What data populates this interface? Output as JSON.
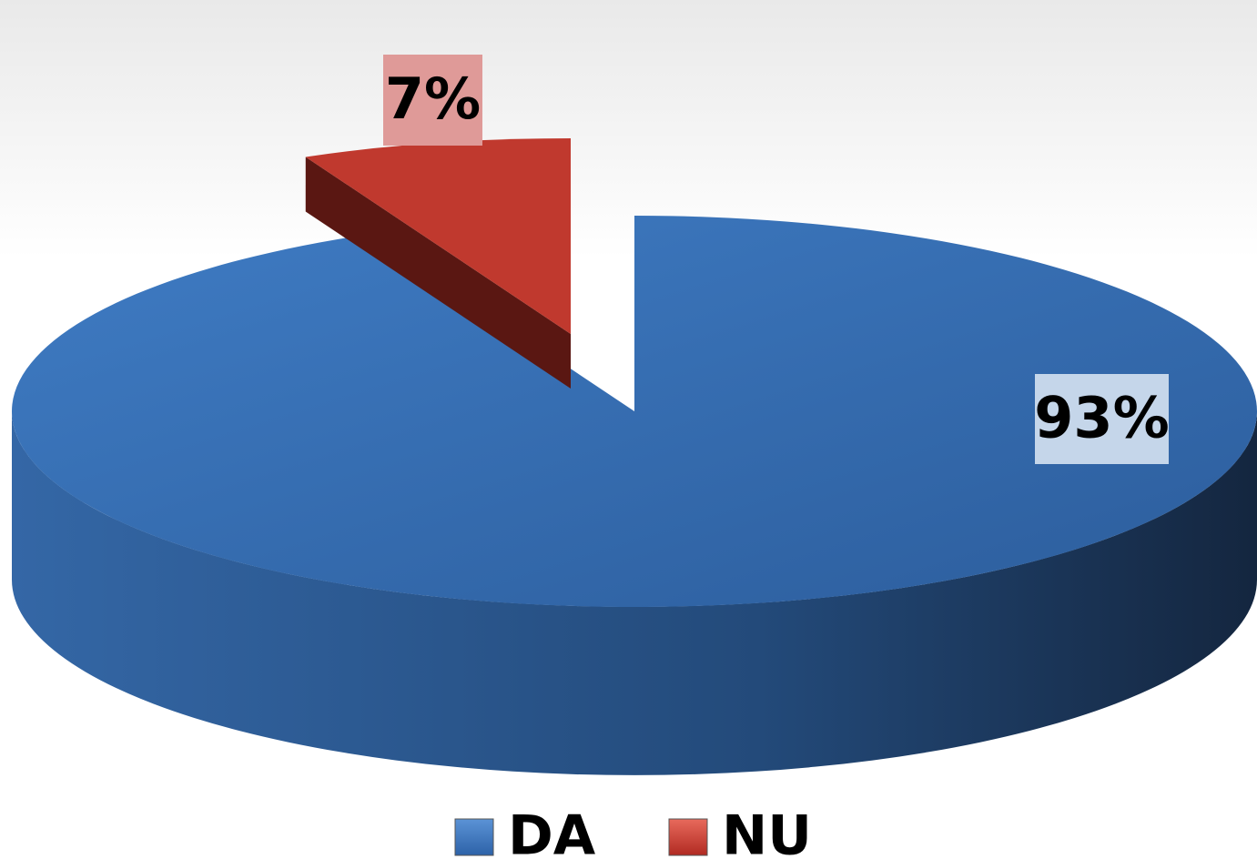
{
  "chart_data": {
    "type": "pie",
    "categories": [
      "DA",
      "NU"
    ],
    "values": [
      93,
      7
    ],
    "value_labels": [
      "93%",
      "7%"
    ],
    "colors": [
      "#3a74bb",
      "#c0392e"
    ],
    "legend": "bottom"
  }
}
